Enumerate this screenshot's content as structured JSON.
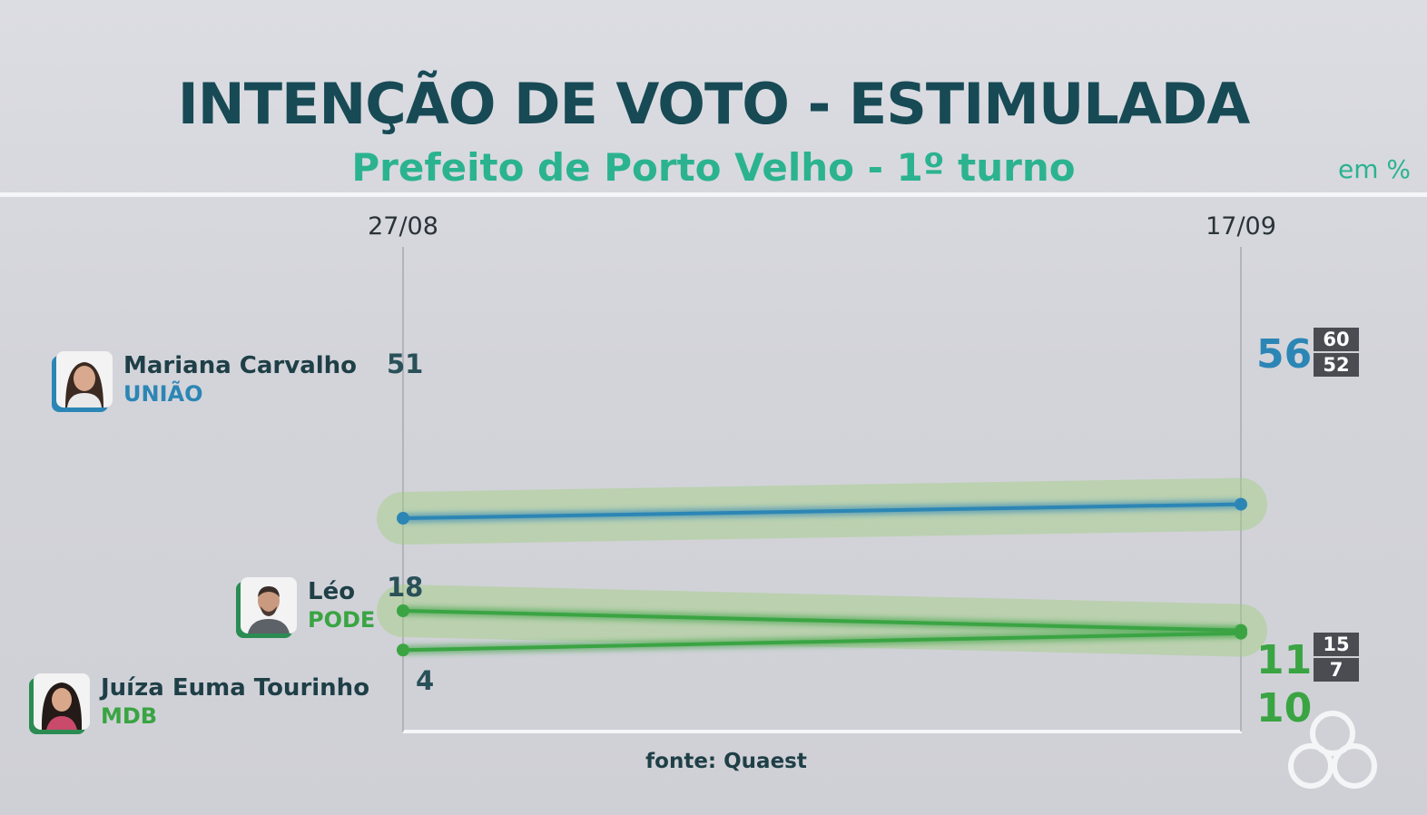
{
  "title": "INTENÇÃO DE VOTO - ESTIMULADA",
  "subtitle": "Prefeito de Porto Velho - 1º turno",
  "unit": "em %",
  "source": "fonte: Quaest",
  "colors": {
    "title": "#174a55",
    "accent": "#2bb38f",
    "blue": "#2c86b5",
    "green": "#3aa443",
    "party_green": "#2a8c52"
  },
  "chart_data": {
    "type": "line",
    "x": [
      "27/08",
      "17/09"
    ],
    "ylim": [
      0,
      60
    ],
    "series": [
      {
        "name": "Mariana Carvalho",
        "party": "UNIÃO",
        "values": [
          51,
          56
        ],
        "labels": [
          "51",
          "56"
        ],
        "color": "#2c86b5",
        "range": [
          "60",
          "52"
        ]
      },
      {
        "name": "Léo",
        "party": "PODE",
        "values": [
          18,
          11
        ],
        "labels": [
          "18",
          "11"
        ],
        "color": "#3aa443",
        "range": [
          "15",
          "7"
        ]
      },
      {
        "name": "Juíza Euma Tourinho",
        "party": "MDB",
        "values": [
          4,
          10
        ],
        "labels": [
          "4",
          "10"
        ],
        "color": "#3aa443"
      }
    ]
  }
}
